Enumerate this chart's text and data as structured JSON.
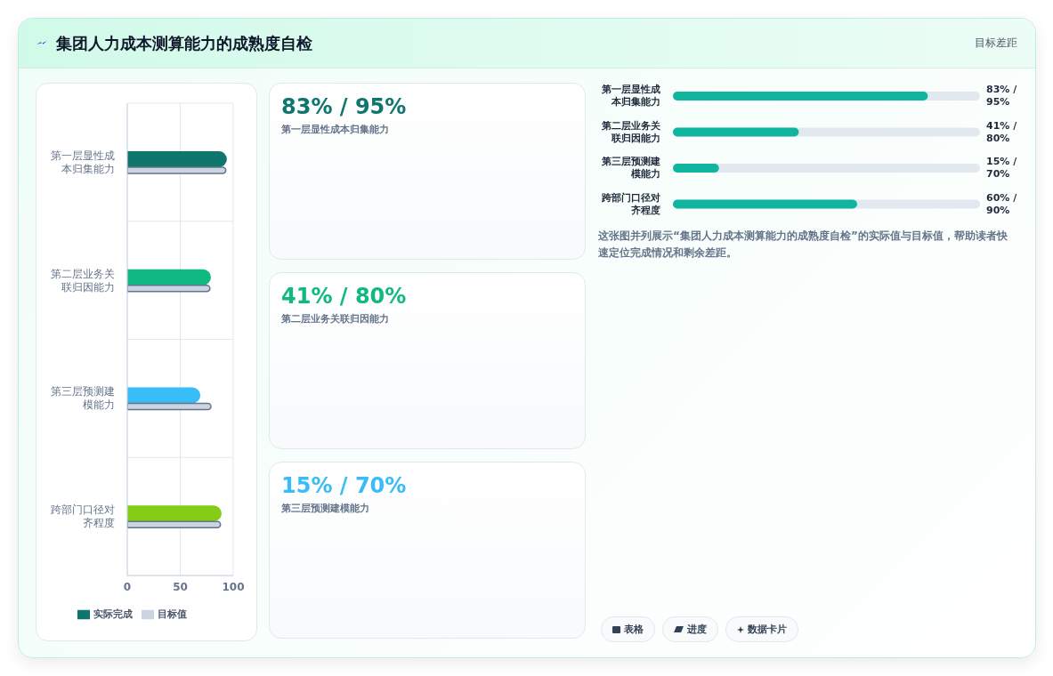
{
  "chart_data": [
    {
      "type": "bar",
      "orientation": "horizontal",
      "title": "集团人力成本测算能力的成熟度自检",
      "annotations": [
        "目标差距"
      ],
      "categories": [
        "第一层显性成本归集能力",
        "第二层业务关联归因能力",
        "第三层预测建模能力",
        "跨部门口径对齐程度"
      ],
      "series": [
        {
          "name": "实际完成",
          "colors": [
            "#0f766e",
            "#10b981",
            "#38bdf8",
            "#84cc16"
          ],
          "values": [
            94,
            79,
            69,
            89
          ]
        },
        {
          "name": "目标值",
          "color": "#cbd5e1",
          "values": [
            93,
            78,
            79,
            88
          ]
        }
      ],
      "xlim": [
        0,
        100
      ],
      "xticks": [
        0,
        50,
        100
      ],
      "grid": true,
      "legend": "bottom"
    },
    {
      "type": "other",
      "categories": [
        "第一层显性成本归集能力",
        "第二层业务关联归因能力",
        "第三层预测建模能力"
      ],
      "value_labels": [
        "83% / 95%",
        "41% / 80%",
        "15% / 70%"
      ]
    },
    {
      "type": "bar",
      "orientation": "horizontal",
      "xlim": [
        0,
        100
      ],
      "tick_labels": "y",
      "categories": [
        "第一层显性成本归集能力",
        "第二层业务关联归因能力",
        "第三层预测建模能力",
        "跨部门口径对齐程度"
      ],
      "values": [
        83,
        41,
        15,
        60
      ],
      "color": "#10b5a0",
      "value_labels": [
        "83% / 95%",
        "41% / 80%",
        "15% / 70%",
        "60% / 90%"
      ],
      "annotations": [
        "这张图并列展示“集团人力成本测算能力的成熟度自检”的实际值与目标值，帮助读者快速定位完成情况和剩余差距。",
        "表格",
        "进度",
        "数据卡片"
      ]
    }
  ]
}
